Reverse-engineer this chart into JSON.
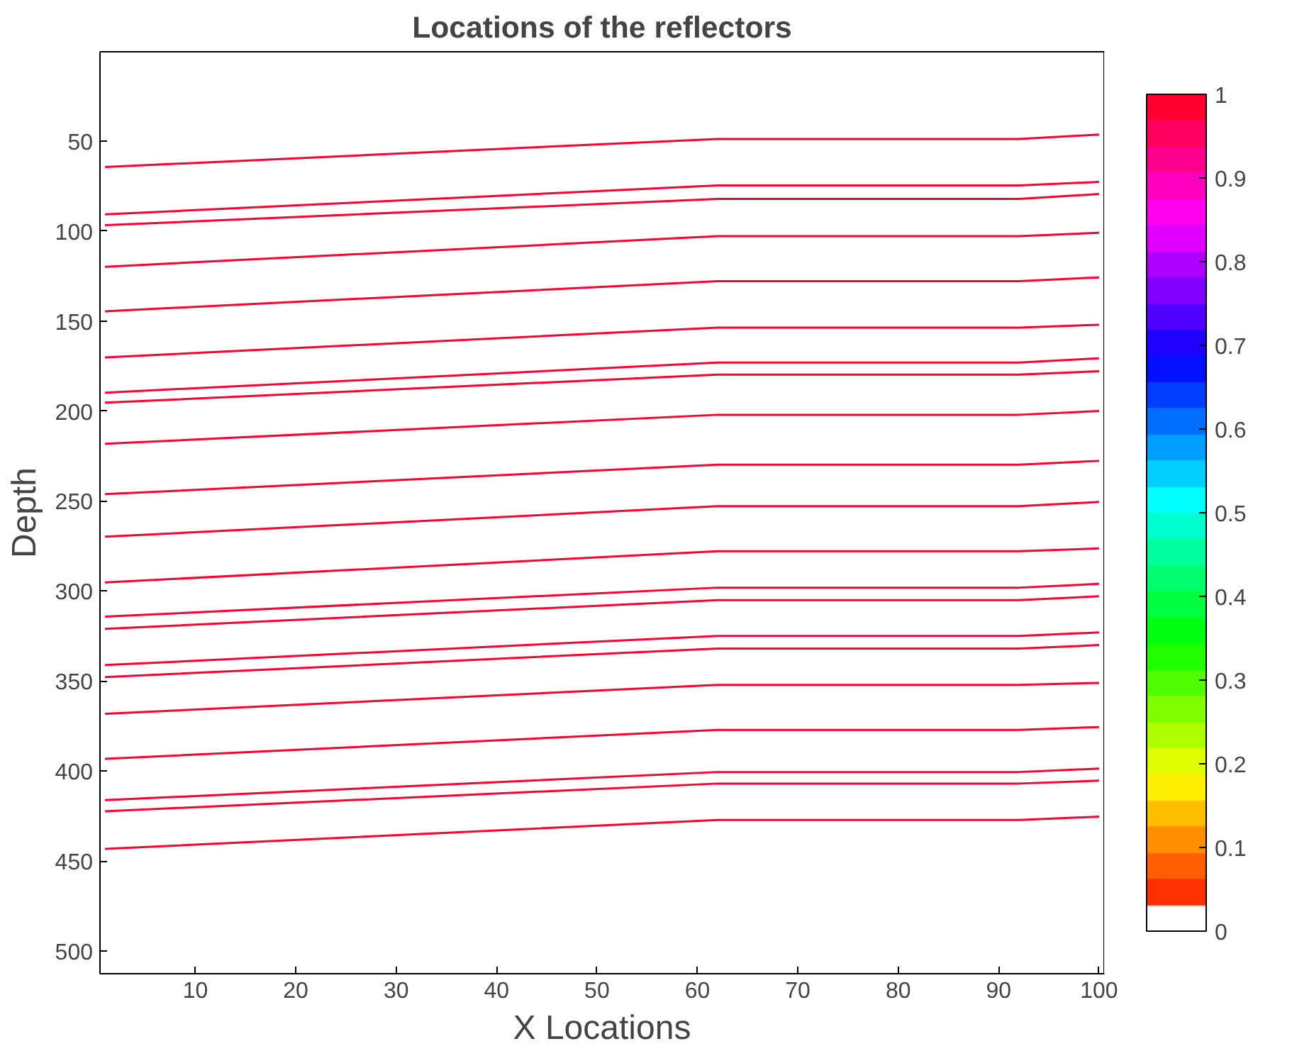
{
  "chart_data": {
    "type": "line",
    "title": "Locations of the reflectors",
    "xlabel": "X Locations",
    "ylabel": "Depth",
    "x": [
      1,
      62,
      92,
      100
    ],
    "series": [
      {
        "color": "#ff0033",
        "values": [
          64.5,
          48.9,
          48.9,
          46.5
        ]
      },
      {
        "color": "#ff0033",
        "values": [
          90.8,
          74.7,
          74.7,
          72.8
        ]
      },
      {
        "color": "#ff0033",
        "values": [
          96.8,
          82.2,
          82.2,
          79.5
        ]
      },
      {
        "color": "#ff0033",
        "values": [
          119.9,
          102.9,
          102.9,
          101
        ]
      },
      {
        "color": "#ff0033",
        "values": [
          144.6,
          127.9,
          127.9,
          125.8
        ]
      },
      {
        "color": "#ff0033",
        "values": [
          170.2,
          153.7,
          153.7,
          152.1
        ]
      },
      {
        "color": "#ff0033",
        "values": [
          189.8,
          173.1,
          173.1,
          170.7
        ]
      },
      {
        "color": "#ff0033",
        "values": [
          195.4,
          179.8,
          179.8,
          177.9
        ]
      },
      {
        "color": "#ff0033",
        "values": [
          218.2,
          202.1,
          202.1,
          200
        ]
      },
      {
        "color": "#ff0033",
        "values": [
          246.2,
          229.8,
          229.8,
          227.7
        ]
      },
      {
        "color": "#ff0033",
        "values": [
          269.8,
          252.9,
          252.9,
          250.5
        ]
      },
      {
        "color": "#ff0033",
        "values": [
          295.2,
          277.9,
          277.9,
          276.3
        ]
      },
      {
        "color": "#ff0033",
        "values": [
          314.2,
          298.1,
          298.1,
          296
        ]
      },
      {
        "color": "#ff0033",
        "values": [
          321,
          305,
          305,
          302.9
        ]
      },
      {
        "color": "#ff0033",
        "values": [
          341.1,
          324.9,
          324.9,
          323
        ]
      },
      {
        "color": "#ff0033",
        "values": [
          347.8,
          331.9,
          331.9,
          330
        ]
      },
      {
        "color": "#ff0033",
        "values": [
          368.2,
          352.1,
          352.1,
          351
        ]
      },
      {
        "color": "#ff0033",
        "values": [
          393.2,
          377.1,
          377.1,
          375.5
        ]
      },
      {
        "color": "#ff0033",
        "values": [
          416.1,
          400.5,
          400.5,
          398.6
        ]
      },
      {
        "color": "#ff0033",
        "values": [
          422.3,
          406.9,
          406.9,
          405.3
        ]
      },
      {
        "color": "#ff0033",
        "values": [
          443.2,
          427.1,
          427.1,
          425.3
        ]
      }
    ],
    "xlim": [
      0.5,
      100.5
    ],
    "ylim": [
      512.5,
      0.5
    ],
    "xticks": [
      10,
      20,
      30,
      40,
      50,
      60,
      70,
      80,
      90,
      100
    ],
    "yticks": [
      50,
      100,
      150,
      200,
      250,
      300,
      350,
      400,
      450,
      500
    ],
    "clim": [
      0,
      1
    ],
    "cticks": [
      0,
      0.1,
      0.2,
      0.3,
      0.4,
      0.5,
      0.6,
      0.7,
      0.8,
      0.9,
      1
    ],
    "grid": false,
    "marker": "none",
    "line_style": "solid"
  }
}
